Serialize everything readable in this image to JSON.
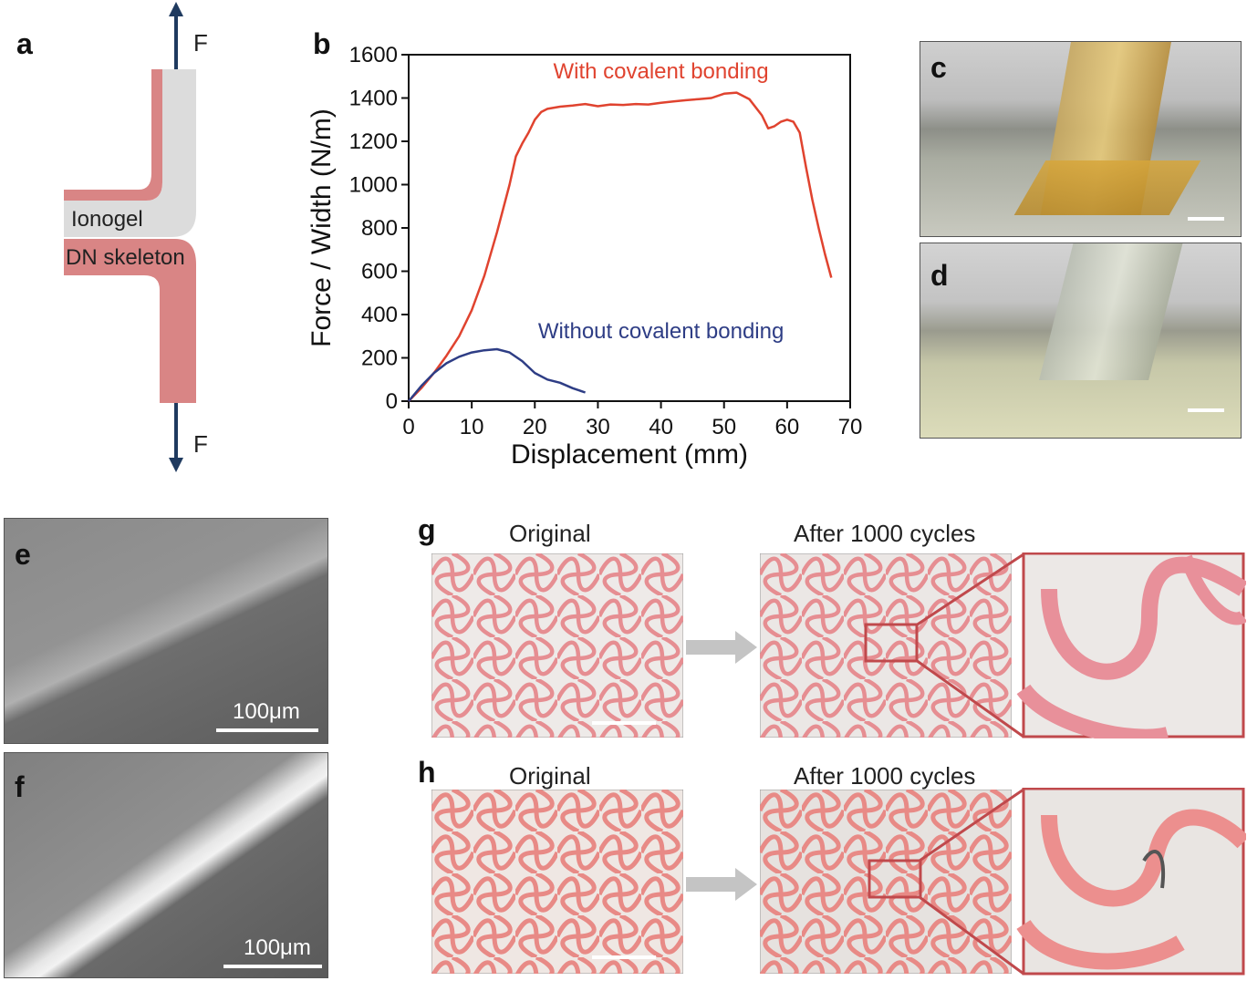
{
  "panels": {
    "a": {
      "letter": "a",
      "force_top": "F",
      "force_bottom": "F",
      "ionogel_label": "Ionogel",
      "skeleton_label": "DN skeleton",
      "colors": {
        "ionogel": "#dcdcdc",
        "skeleton": "#d98585",
        "arrow": "#1f3a5f"
      }
    },
    "b": {
      "letter": "b"
    },
    "c": {
      "letter": "c"
    },
    "d": {
      "letter": "d"
    },
    "e": {
      "letter": "e",
      "scale": "100μm"
    },
    "f": {
      "letter": "f",
      "scale": "100μm"
    },
    "g": {
      "letter": "g",
      "original": "Original",
      "after": "After 1000 cycles"
    },
    "h": {
      "letter": "h",
      "original": "Original",
      "after": "After 1000 cycles"
    }
  },
  "chart_data": {
    "type": "line",
    "xlabel": "Displacement (mm)",
    "ylabel": "Force / Width (N/m)",
    "xlim": [
      0,
      70
    ],
    "ylim": [
      0,
      1600
    ],
    "xticks": [
      0,
      10,
      20,
      30,
      40,
      50,
      60,
      70
    ],
    "yticks": [
      0,
      200,
      400,
      600,
      800,
      1000,
      1200,
      1400,
      1600
    ],
    "grid": false,
    "series": [
      {
        "name": "With covalent bonding",
        "color": "#e0432f",
        "x": [
          0,
          2,
          4,
          6,
          8,
          10,
          12,
          14,
          16,
          17,
          18,
          19,
          20,
          21,
          22,
          24,
          26,
          28,
          30,
          32,
          34,
          36,
          38,
          40,
          42,
          44,
          46,
          48,
          50,
          52,
          54,
          56,
          57,
          58,
          59,
          60,
          61,
          62,
          63,
          64,
          65,
          66,
          67
        ],
        "y": [
          0,
          60,
          130,
          210,
          300,
          420,
          580,
          780,
          1000,
          1130,
          1190,
          1240,
          1300,
          1335,
          1350,
          1360,
          1365,
          1372,
          1362,
          1370,
          1368,
          1372,
          1370,
          1378,
          1384,
          1390,
          1395,
          1400,
          1420,
          1425,
          1395,
          1320,
          1260,
          1270,
          1290,
          1300,
          1290,
          1240,
          1080,
          930,
          800,
          680,
          570
        ]
      },
      {
        "name": "Without covalent bonding",
        "color": "#2e3d85",
        "x": [
          0,
          2,
          4,
          6,
          8,
          10,
          12,
          14,
          16,
          18,
          20,
          22,
          24,
          26,
          28
        ],
        "y": [
          0,
          70,
          130,
          175,
          205,
          225,
          235,
          240,
          225,
          185,
          130,
          100,
          85,
          60,
          40
        ]
      }
    ]
  }
}
